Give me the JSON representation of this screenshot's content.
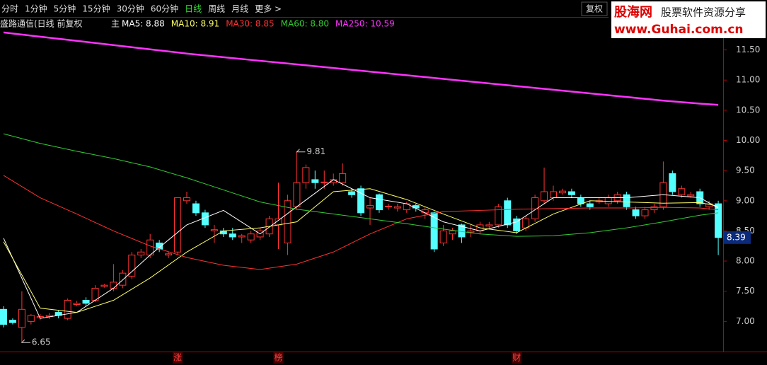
{
  "toolbar": {
    "periods": [
      "分时",
      "1分钟",
      "5分钟",
      "15分钟",
      "30分钟",
      "60分钟",
      "日线",
      "周线",
      "月线",
      "更多 >"
    ],
    "active": 6,
    "adjust": "复权"
  },
  "watermark": {
    "brand": "股海网",
    "slogan": "股票软件资源分享",
    "url": "www.Guhai.com.cn"
  },
  "chart_data": {
    "type": "candlestick",
    "title": "盛路通信(日线 前复权",
    "main_label": "主",
    "up_color": "#ff3232",
    "down_color": "#54ffff",
    "candles": [
      {
        "o": 7.2,
        "h": 7.25,
        "l": 6.9,
        "c": 6.95
      },
      {
        "o": 7.02,
        "h": 7.05,
        "l": 6.95,
        "c": 6.98
      },
      {
        "o": 6.9,
        "h": 7.5,
        "l": 6.65,
        "c": 7.2
      },
      {
        "o": 7.0,
        "h": 7.12,
        "l": 6.95,
        "c": 7.1
      },
      {
        "o": 7.06,
        "h": 7.12,
        "l": 7.02,
        "c": 7.08
      },
      {
        "o": 7.08,
        "h": 7.14,
        "l": 7.04,
        "c": 7.1
      },
      {
        "o": 7.15,
        "h": 7.18,
        "l": 7.05,
        "c": 7.1
      },
      {
        "o": 7.05,
        "h": 7.38,
        "l": 7.02,
        "c": 7.35
      },
      {
        "o": 7.28,
        "h": 7.34,
        "l": 7.25,
        "c": 7.3
      },
      {
        "o": 7.35,
        "h": 7.4,
        "l": 7.25,
        "c": 7.3
      },
      {
        "o": 7.35,
        "h": 7.6,
        "l": 7.32,
        "c": 7.55
      },
      {
        "o": 7.58,
        "h": 7.62,
        "l": 7.56,
        "c": 7.6
      },
      {
        "o": 7.55,
        "h": 7.95,
        "l": 7.5,
        "c": 7.65
      },
      {
        "o": 7.6,
        "h": 7.85,
        "l": 7.55,
        "c": 7.8
      },
      {
        "o": 7.75,
        "h": 8.15,
        "l": 7.7,
        "c": 8.1
      },
      {
        "o": 8.1,
        "h": 8.2,
        "l": 8.05,
        "c": 8.15
      },
      {
        "o": 8.1,
        "h": 8.45,
        "l": 8.05,
        "c": 8.35
      },
      {
        "o": 8.3,
        "h": 8.35,
        "l": 8.15,
        "c": 8.2
      },
      {
        "o": 8.1,
        "h": 8.15,
        "l": 8.05,
        "c": 8.12
      },
      {
        "o": 8.15,
        "h": 9.05,
        "l": 8.1,
        "c": 9.05
      },
      {
        "o": 9.0,
        "h": 9.15,
        "l": 8.95,
        "c": 9.05
      },
      {
        "o": 8.95,
        "h": 9.0,
        "l": 8.75,
        "c": 8.8
      },
      {
        "o": 8.8,
        "h": 8.85,
        "l": 8.55,
        "c": 8.6
      },
      {
        "o": 8.5,
        "h": 8.6,
        "l": 8.3,
        "c": 8.52
      },
      {
        "o": 8.5,
        "h": 8.55,
        "l": 8.4,
        "c": 8.45
      },
      {
        "o": 8.45,
        "h": 8.55,
        "l": 8.35,
        "c": 8.4
      },
      {
        "o": 8.4,
        "h": 8.45,
        "l": 8.3,
        "c": 8.42
      },
      {
        "o": 8.35,
        "h": 8.5,
        "l": 8.3,
        "c": 8.45
      },
      {
        "o": 8.4,
        "h": 8.55,
        "l": 8.35,
        "c": 8.5
      },
      {
        "o": 8.45,
        "h": 8.75,
        "l": 8.4,
        "c": 8.7
      },
      {
        "o": 8.6,
        "h": 9.3,
        "l": 8.2,
        "c": 8.7
      },
      {
        "o": 8.3,
        "h": 9.1,
        "l": 8.1,
        "c": 9.0
      },
      {
        "o": 8.9,
        "h": 9.81,
        "l": 8.85,
        "c": 9.3
      },
      {
        "o": 9.3,
        "h": 9.6,
        "l": 9.2,
        "c": 9.55
      },
      {
        "o": 9.35,
        "h": 9.5,
        "l": 9.2,
        "c": 9.3
      },
      {
        "o": 9.3,
        "h": 9.5,
        "l": 9.2,
        "c": 9.31
      },
      {
        "o": 9.3,
        "h": 9.45,
        "l": 9.25,
        "c": 9.35
      },
      {
        "o": 9.3,
        "h": 9.62,
        "l": 9.25,
        "c": 9.45
      },
      {
        "o": 9.15,
        "h": 9.2,
        "l": 9.05,
        "c": 9.1
      },
      {
        "o": 9.2,
        "h": 9.25,
        "l": 8.75,
        "c": 8.8
      },
      {
        "o": 8.88,
        "h": 9.05,
        "l": 8.6,
        "c": 8.92
      },
      {
        "o": 9.1,
        "h": 9.12,
        "l": 8.8,
        "c": 8.85
      },
      {
        "o": 8.9,
        "h": 8.95,
        "l": 8.85,
        "c": 8.91
      },
      {
        "o": 8.88,
        "h": 8.95,
        "l": 8.82,
        "c": 8.9
      },
      {
        "o": 8.85,
        "h": 8.98,
        "l": 8.8,
        "c": 8.95
      },
      {
        "o": 8.92,
        "h": 8.95,
        "l": 8.82,
        "c": 8.88
      },
      {
        "o": 8.8,
        "h": 8.9,
        "l": 8.7,
        "c": 8.85
      },
      {
        "o": 8.8,
        "h": 8.82,
        "l": 8.15,
        "c": 8.2
      },
      {
        "o": 8.3,
        "h": 8.6,
        "l": 8.25,
        "c": 8.5
      },
      {
        "o": 8.45,
        "h": 8.55,
        "l": 8.35,
        "c": 8.5
      },
      {
        "o": 8.6,
        "h": 8.62,
        "l": 8.3,
        "c": 8.4
      },
      {
        "o": 8.48,
        "h": 8.6,
        "l": 8.4,
        "c": 8.5
      },
      {
        "o": 8.5,
        "h": 8.65,
        "l": 8.45,
        "c": 8.6
      },
      {
        "o": 8.58,
        "h": 8.65,
        "l": 8.55,
        "c": 8.6
      },
      {
        "o": 8.6,
        "h": 8.95,
        "l": 8.55,
        "c": 8.9
      },
      {
        "o": 9.0,
        "h": 9.05,
        "l": 8.55,
        "c": 8.6
      },
      {
        "o": 8.7,
        "h": 8.75,
        "l": 8.45,
        "c": 8.5
      },
      {
        "o": 8.55,
        "h": 8.75,
        "l": 8.5,
        "c": 8.7
      },
      {
        "o": 8.7,
        "h": 9.1,
        "l": 8.65,
        "c": 9.05
      },
      {
        "o": 9.0,
        "h": 9.55,
        "l": 8.95,
        "c": 9.15
      },
      {
        "o": 9.05,
        "h": 9.25,
        "l": 9.0,
        "c": 9.15
      },
      {
        "o": 9.13,
        "h": 9.2,
        "l": 9.1,
        "c": 9.16
      },
      {
        "o": 9.15,
        "h": 9.2,
        "l": 9.05,
        "c": 9.1
      },
      {
        "o": 9.05,
        "h": 9.1,
        "l": 8.9,
        "c": 8.95
      },
      {
        "o": 8.95,
        "h": 9.0,
        "l": 8.85,
        "c": 8.9
      },
      {
        "o": 8.98,
        "h": 9.05,
        "l": 8.95,
        "c": 9.0
      },
      {
        "o": 8.95,
        "h": 9.1,
        "l": 8.9,
        "c": 9.05
      },
      {
        "o": 9.0,
        "h": 9.15,
        "l": 8.95,
        "c": 9.1
      },
      {
        "o": 9.1,
        "h": 9.15,
        "l": 8.85,
        "c": 8.9
      },
      {
        "o": 8.85,
        "h": 8.9,
        "l": 8.7,
        "c": 8.75
      },
      {
        "o": 8.75,
        "h": 8.9,
        "l": 8.7,
        "c": 8.85
      },
      {
        "o": 8.85,
        "h": 8.95,
        "l": 8.8,
        "c": 8.9
      },
      {
        "o": 8.9,
        "h": 9.65,
        "l": 8.85,
        "c": 9.3
      },
      {
        "o": 9.45,
        "h": 9.5,
        "l": 9.1,
        "c": 9.15
      },
      {
        "o": 9.1,
        "h": 9.25,
        "l": 9.05,
        "c": 9.2
      },
      {
        "o": 9.08,
        "h": 9.15,
        "l": 9.05,
        "c": 9.1
      },
      {
        "o": 9.15,
        "h": 9.2,
        "l": 8.9,
        "c": 8.95
      },
      {
        "o": 8.9,
        "h": 9.0,
        "l": 8.85,
        "c": 8.95
      },
      {
        "o": 8.95,
        "h": 9.0,
        "l": 8.1,
        "c": 8.39
      }
    ],
    "ma_x": [
      0,
      4,
      8,
      12,
      16,
      20,
      24,
      28,
      32,
      36,
      40,
      44,
      48,
      52,
      56,
      60,
      64,
      68,
      72,
      76,
      78
    ],
    "series": [
      {
        "name": "MA5: 8.88",
        "color": "#ffffff",
        "values": [
          8.38,
          7.05,
          7.15,
          7.55,
          8.1,
          8.6,
          8.84,
          8.45,
          8.9,
          9.35,
          9.05,
          8.95,
          8.65,
          8.5,
          8.65,
          9.05,
          9.05,
          9.05,
          9.1,
          9.05,
          8.88
        ]
      },
      {
        "name": "MA10: 8.91",
        "color": "#ffff66",
        "values": [
          8.32,
          7.22,
          7.15,
          7.35,
          7.72,
          8.15,
          8.5,
          8.55,
          8.65,
          9.15,
          9.2,
          9.02,
          8.78,
          8.55,
          8.47,
          8.78,
          9.0,
          8.98,
          8.96,
          8.97,
          8.91
        ]
      },
      {
        "name": "MA30: 8.85",
        "color": "#ff3232",
        "values": [
          9.42,
          9.05,
          8.78,
          8.5,
          8.25,
          8.06,
          7.93,
          7.86,
          7.95,
          8.15,
          8.45,
          8.7,
          8.82,
          8.84,
          8.86,
          8.87,
          8.88,
          8.88,
          8.89,
          8.88,
          8.85
        ]
      },
      {
        "name": "MA60: 8.80",
        "color": "#33cc33",
        "values": [
          10.11,
          9.95,
          9.82,
          9.7,
          9.56,
          9.38,
          9.18,
          8.98,
          8.86,
          8.78,
          8.7,
          8.62,
          8.53,
          8.45,
          8.41,
          8.42,
          8.47,
          8.55,
          8.65,
          8.76,
          8.8
        ]
      },
      {
        "name": "MA250: 10.59",
        "color": "#ff33ff",
        "values": [
          11.79,
          11.72,
          11.65,
          11.58,
          11.51,
          11.44,
          11.38,
          11.32,
          11.26,
          11.2,
          11.14,
          11.08,
          11.02,
          10.96,
          10.9,
          10.84,
          10.78,
          10.72,
          10.66,
          10.61,
          10.59
        ]
      }
    ],
    "ylim": [
      6.5,
      11.8
    ],
    "yticks": [
      {
        "value": 7,
        "label": "7.00"
      },
      {
        "value": 7.5,
        "label": "7.50"
      },
      {
        "value": 8,
        "label": "8.00"
      },
      {
        "value": 8.5,
        "label": "8.50"
      },
      {
        "value": 9,
        "label": "9.00"
      },
      {
        "value": 9.5,
        "label": "9.50"
      },
      {
        "value": 10,
        "label": "10.00"
      },
      {
        "value": 10.5,
        "label": "10.50"
      },
      {
        "value": 11,
        "label": "11.00"
      },
      {
        "value": 11.5,
        "label": "11.50"
      }
    ],
    "last_price": {
      "value": 8.39,
      "label": "8.39"
    },
    "high_label": {
      "index": 32,
      "value": 9.81,
      "label": "9.81"
    },
    "low_label": {
      "index": 2,
      "value": 6.65,
      "label": "6.65"
    },
    "events": [
      {
        "index": 19,
        "label": "涨"
      },
      {
        "index": 30,
        "label": "榜"
      },
      {
        "index": 56,
        "label": "财"
      }
    ]
  }
}
